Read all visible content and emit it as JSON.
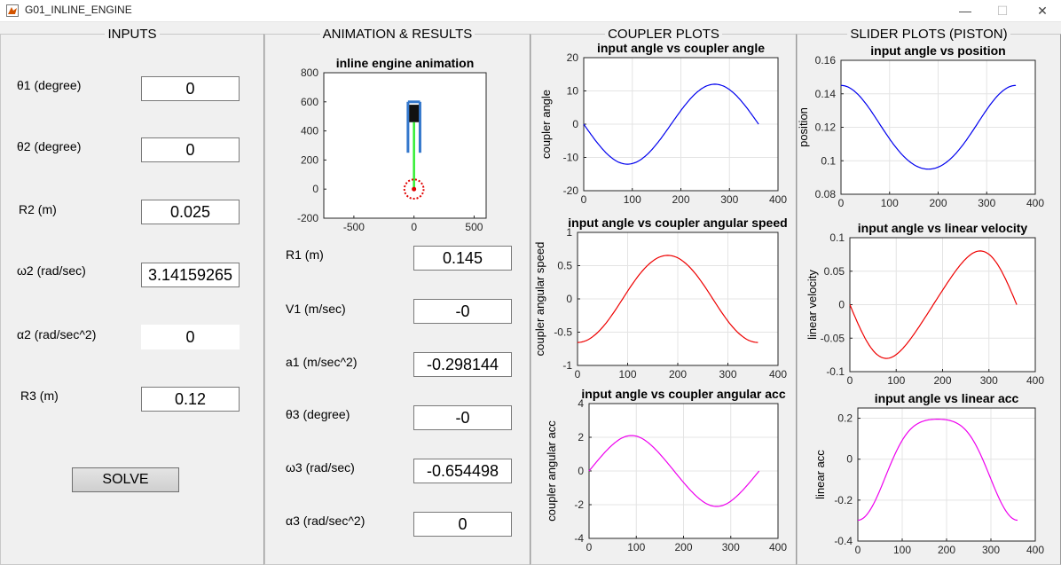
{
  "window": {
    "title": "G01_INLINE_ENGINE",
    "minimize": "—",
    "maximize": "☐",
    "close": "✕"
  },
  "inputs": {
    "title": "INPUTS",
    "fields": [
      {
        "label": "θ1 (degree)",
        "value": "0"
      },
      {
        "label": "θ2 (degree)",
        "value": "0"
      },
      {
        "label": "R2 (m)",
        "value": "0.025"
      },
      {
        "label": "ω2 (rad/sec)",
        "value": "3.14159265"
      },
      {
        "label": "α2  (rad/sec^2)",
        "value": "0"
      },
      {
        "label": "R3 (m)",
        "value": "0.12"
      }
    ],
    "solve_label": "SOLVE"
  },
  "results": {
    "title": "ANIMATION & RESULTS",
    "fields": [
      {
        "label": "R1 (m)",
        "value": "0.145"
      },
      {
        "label": "V1 (m/sec)",
        "value": "-0"
      },
      {
        "label": "a1 (m/sec^2)",
        "value": "-0.298144"
      },
      {
        "label": "θ3 (degree)",
        "value": "-0"
      },
      {
        "label": "ω3 (rad/sec)",
        "value": "-0.654498"
      },
      {
        "label": "α3  (rad/sec^2)",
        "value": "0"
      }
    ]
  },
  "coupler_panel": {
    "title": "COUPLER PLOTS"
  },
  "slider_panel": {
    "title": "SLIDER PLOTS (PISTON)"
  },
  "chart_data": [
    {
      "id": "animation",
      "type": "scatter",
      "title": "inline engine animation",
      "xlim": [
        -750,
        600
      ],
      "ylim": [
        -200,
        800
      ],
      "xticks": [
        -500,
        0,
        500
      ],
      "yticks": [
        -200,
        0,
        200,
        400,
        600,
        800
      ],
      "xtick_labels": [
        "-500",
        "0",
        "500"
      ],
      "ytick_labels": [
        "-200",
        "0",
        "200",
        "400",
        "600",
        "800"
      ],
      "crank_center": [
        0,
        0
      ],
      "crank_radius": 80,
      "rod_bottom": [
        0,
        0
      ],
      "rod_top": [
        0,
        460
      ],
      "piston_top": 580,
      "piston_bottom": 460,
      "piston_half_width": 40,
      "guide_x": [
        -50,
        50
      ],
      "guide_top": 600,
      "guide_bottom": 250,
      "colors": {
        "crank": "#e00000",
        "rod": "#33ee33",
        "piston": "#111111",
        "guide": "#3377cc"
      }
    },
    {
      "id": "coupler-angle",
      "type": "line",
      "title": "input angle vs coupler angle",
      "xlabel": "",
      "ylabel": "coupler angle",
      "xlim": [
        0,
        400
      ],
      "ylim": [
        -20,
        20
      ],
      "xticks": [
        0,
        100,
        200,
        300,
        400
      ],
      "yticks": [
        -20,
        -10,
        0,
        10,
        20
      ],
      "xtick_labels": [
        "0",
        "100",
        "200",
        "300",
        "400"
      ],
      "ytick_labels": [
        "-20",
        "-10",
        "0",
        "10",
        "20"
      ],
      "color": "#0000ee",
      "x_range": [
        0,
        360
      ],
      "fn": "theta3"
    },
    {
      "id": "coupler-speed",
      "type": "line",
      "title": "input angle vs coupler angular speed",
      "xlabel": "",
      "ylabel": "coupler angular speed",
      "xlim": [
        0,
        400
      ],
      "ylim": [
        -1,
        1
      ],
      "xticks": [
        0,
        100,
        200,
        300,
        400
      ],
      "yticks": [
        -1,
        -0.5,
        0,
        0.5,
        1
      ],
      "xtick_labels": [
        "0",
        "100",
        "200",
        "300",
        "400"
      ],
      "ytick_labels": [
        "-1",
        "-0.5",
        "0",
        "0.5",
        "1"
      ],
      "color": "#ee0000",
      "x_range": [
        0,
        360
      ],
      "fn": "omega3"
    },
    {
      "id": "coupler-acc",
      "type": "line",
      "title": "input angle vs coupler angular acc",
      "xlabel": "",
      "ylabel": "coupler angular acc",
      "xlim": [
        0,
        400
      ],
      "ylim": [
        -4,
        4
      ],
      "xticks": [
        0,
        100,
        200,
        300,
        400
      ],
      "yticks": [
        -4,
        -2,
        0,
        2,
        4
      ],
      "xtick_labels": [
        "0",
        "100",
        "200",
        "300",
        "400"
      ],
      "ytick_labels": [
        "-4",
        "-2",
        "0",
        "2",
        "4"
      ],
      "color": "#ee00ee",
      "x_range": [
        0,
        360
      ],
      "fn": "alpha3"
    },
    {
      "id": "slider-position",
      "type": "line",
      "title": "input angle vs  position",
      "xlabel": "",
      "ylabel": "position",
      "xlim": [
        0,
        400
      ],
      "ylim": [
        0.08,
        0.16
      ],
      "xticks": [
        0,
        100,
        200,
        300,
        400
      ],
      "yticks": [
        0.08,
        0.1,
        0.12,
        0.14,
        0.16
      ],
      "xtick_labels": [
        "0",
        "100",
        "200",
        "300",
        "400"
      ],
      "ytick_labels": [
        "0.08",
        "0.1",
        "0.12",
        "0.14",
        "0.16"
      ],
      "color": "#0000ee",
      "x_range": [
        0,
        360
      ],
      "fn": "r1"
    },
    {
      "id": "slider-velocity",
      "type": "line",
      "title": "input angle vs linear velocity",
      "xlabel": "",
      "ylabel": "linear velocity",
      "xlim": [
        0,
        400
      ],
      "ylim": [
        -0.1,
        0.1
      ],
      "xticks": [
        0,
        100,
        200,
        300,
        400
      ],
      "yticks": [
        -0.1,
        -0.05,
        0,
        0.05,
        0.1
      ],
      "xtick_labels": [
        "0",
        "100",
        "200",
        "300",
        "400"
      ],
      "ytick_labels": [
        "-0.1",
        "-0.05",
        "0",
        "0.05",
        "0.1"
      ],
      "color": "#ee0000",
      "x_range": [
        0,
        360
      ],
      "fn": "v1"
    },
    {
      "id": "slider-acc",
      "type": "line",
      "title": "input angle vs linear acc",
      "xlabel": "",
      "ylabel": "linear acc",
      "xlim": [
        0,
        400
      ],
      "ylim": [
        -0.4,
        0.25
      ],
      "xticks": [
        0,
        100,
        200,
        300,
        400
      ],
      "yticks": [
        -0.4,
        -0.2,
        0,
        0.2
      ],
      "xtick_labels": [
        "0",
        "100",
        "200",
        "300",
        "400"
      ],
      "ytick_labels": [
        "-0.4",
        "-0.2",
        "0",
        "0.2"
      ],
      "color": "#ee00ee",
      "x_range": [
        0,
        360
      ],
      "fn": "a1"
    }
  ]
}
